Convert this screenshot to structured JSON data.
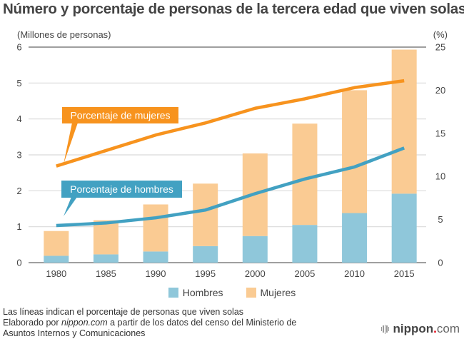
{
  "title": "Número y porcentaje de personas de la tercera edad que viven solas",
  "chart_data": {
    "type": "bar",
    "stacked": true,
    "title": "Número y porcentaje de personas de la tercera edad que viven solas",
    "categories": [
      "1980",
      "1985",
      "1990",
      "1995",
      "2000",
      "2005",
      "2010",
      "2015"
    ],
    "ylabel_left": "(Millones de personas)",
    "ylabel_right": "(%)",
    "ylim_left": [
      0,
      6
    ],
    "ylim_right": [
      0,
      25
    ],
    "yticks_left": [
      "0",
      "1",
      "2",
      "3",
      "4",
      "5",
      "6"
    ],
    "yticks_right": [
      "0",
      "5",
      "10",
      "15",
      "20",
      "25"
    ],
    "grid": true,
    "legend_position": "bottom",
    "series": [
      {
        "name": "Hombres",
        "kind": "bar",
        "axis": "left",
        "color": "#8fc7da",
        "values": [
          0.19,
          0.23,
          0.31,
          0.46,
          0.74,
          1.05,
          1.38,
          1.92
        ]
      },
      {
        "name": "Mujeres",
        "kind": "bar",
        "axis": "left",
        "color": "#facb93",
        "values": [
          0.69,
          0.95,
          1.31,
          1.74,
          2.3,
          2.82,
          3.42,
          4.01
        ]
      },
      {
        "name": "Porcentaje de mujeres",
        "kind": "line",
        "axis": "right",
        "color": "#f7931e",
        "values": [
          11.2,
          13.0,
          14.8,
          16.2,
          17.9,
          19.0,
          20.3,
          21.1
        ]
      },
      {
        "name": "Porcentaje de hombres",
        "kind": "line",
        "axis": "right",
        "color": "#42a1c2",
        "values": [
          4.3,
          4.6,
          5.2,
          6.1,
          8.0,
          9.7,
          11.1,
          13.3
        ]
      }
    ],
    "annotations": [
      {
        "text": "Porcentaje de mujeres",
        "series": "Porcentaje de mujeres",
        "color": "#f7931e"
      },
      {
        "text": "Porcentaje de hombres",
        "series": "Porcentaje de hombres",
        "color": "#42a1c2"
      }
    ]
  },
  "legend": [
    {
      "label": "Hombres",
      "color": "#8fc7da"
    },
    {
      "label": "Mujeres",
      "color": "#facb93"
    }
  ],
  "notes": {
    "line1": "Las líneas indican el porcentaje de personas que viven solas",
    "line2_pre": "Elaborado por ",
    "line2_italic": "nippon.com",
    "line2_post": " a partir de los datos del censo del Ministerio de",
    "line3": "Asuntos Internos y Comunicaciones"
  },
  "logo": {
    "name": "nippon",
    "dot": ".",
    "tld": "com"
  }
}
